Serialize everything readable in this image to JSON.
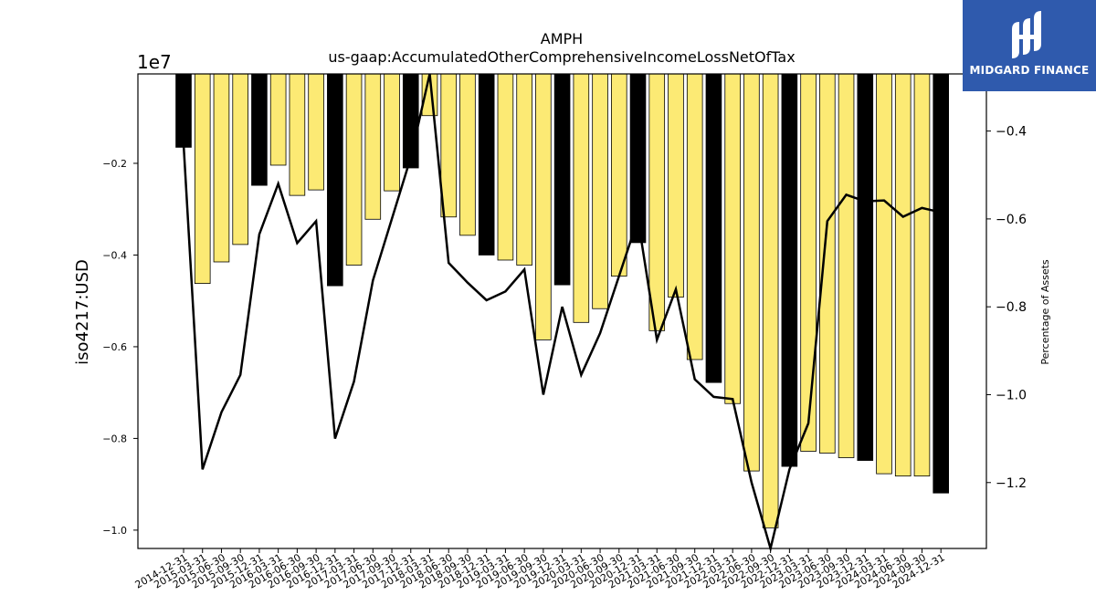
{
  "chart_data": {
    "type": "bar",
    "title": "AMPH",
    "subtitle": "us-gaap:AccumulatedOtherComprehensiveIncomeLossNetOfTax",
    "ylabel": "iso4217:USD",
    "y2label": "Percentage of Assets",
    "y_multiplier_label": "1e7",
    "ylim": [
      -10400000,
      -50000
    ],
    "y_ticks": [
      -2000000,
      -4000000,
      -6000000,
      -8000000,
      -10000000
    ],
    "y_tick_labels": [
      "−0.2",
      "−0.4",
      "−0.6",
      "−0.8",
      "−1.0"
    ],
    "y2lim": [
      -1.35,
      -0.27
    ],
    "y2_ticks": [
      -0.4,
      -0.6,
      -0.8,
      -1.0,
      -1.2
    ],
    "y2_tick_labels": [
      "−0.4",
      "−0.6",
      "−0.8",
      "−1.0",
      "−1.2"
    ],
    "grid": false,
    "categories": [
      "2014-12-31",
      "2015-03-31",
      "2015-06-30",
      "2015-09-30",
      "2015-12-31",
      "2016-03-31",
      "2016-06-30",
      "2016-09-30",
      "2016-12-31",
      "2017-03-31",
      "2017-06-30",
      "2017-09-30",
      "2017-12-31",
      "2018-03-31",
      "2018-06-30",
      "2018-09-30",
      "2018-12-31",
      "2019-03-31",
      "2019-06-30",
      "2019-09-30",
      "2019-12-31",
      "2020-03-31",
      "2020-06-30",
      "2020-09-30",
      "2020-12-31",
      "2021-03-31",
      "2021-06-30",
      "2021-09-30",
      "2021-12-31",
      "2022-03-31",
      "2022-06-30",
      "2022-09-30",
      "2022-12-31",
      "2023-03-31",
      "2023-06-30",
      "2023-09-30",
      "2023-12-31",
      "2024-03-31",
      "2024-06-30",
      "2024-09-30",
      "2024-12-31"
    ],
    "bar_values": [
      -1650000,
      -4620000,
      -4150000,
      -3770000,
      -2480000,
      -2040000,
      -2700000,
      -2580000,
      -4670000,
      -4220000,
      -3220000,
      -2600000,
      -2100000,
      -960000,
      -3170000,
      -3570000,
      -4000000,
      -4110000,
      -4220000,
      -5850000,
      -4650000,
      -5470000,
      -5170000,
      -4460000,
      -3730000,
      -5650000,
      -4920000,
      -6280000,
      -6780000,
      -7240000,
      -8710000,
      -9950000,
      -8610000,
      -8280000,
      -8320000,
      -8420000,
      -8480000,
      -8770000,
      -8820000,
      -8820000,
      -9190000
    ],
    "bar_highlight": [
      true,
      false,
      false,
      false,
      true,
      false,
      false,
      false,
      true,
      false,
      false,
      false,
      true,
      false,
      false,
      false,
      true,
      false,
      false,
      false,
      true,
      false,
      false,
      false,
      true,
      false,
      false,
      false,
      true,
      false,
      false,
      false,
      true,
      false,
      false,
      false,
      true,
      false,
      false,
      false,
      true
    ],
    "line_values": [
      -0.43,
      -1.17,
      -1.04,
      -0.955,
      -0.635,
      -0.52,
      -0.655,
      -0.605,
      -1.1,
      -0.97,
      -0.74,
      -0.6,
      -0.46,
      -0.27,
      -0.7,
      -0.745,
      -0.785,
      -0.765,
      -0.715,
      -1.0,
      -0.8,
      -0.955,
      -0.86,
      -0.73,
      -0.6,
      -0.875,
      -0.76,
      -0.965,
      -1.005,
      -1.01,
      -1.2,
      -1.35,
      -1.17,
      -1.065,
      -0.605,
      -0.545,
      -0.56,
      -0.558,
      -0.595,
      -0.575,
      -0.585
    ],
    "colors": {
      "bar_default": "#fcea74",
      "bar_highlight": "#000000",
      "line": "#000000"
    }
  },
  "logo": {
    "text": "MIDGARD FINANCE",
    "background": "#2f5aad"
  }
}
